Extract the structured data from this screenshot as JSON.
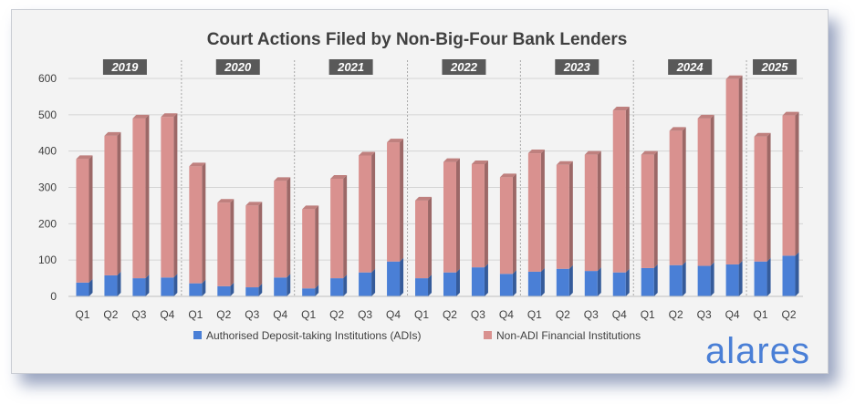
{
  "chart_data": {
    "type": "bar",
    "stacked": true,
    "title": "Court Actions Filed by Non-Big-Four Bank Lenders",
    "xlabel": "",
    "ylabel": "",
    "ylim": [
      0,
      600
    ],
    "yticks": [
      0,
      100,
      200,
      300,
      400,
      500,
      600
    ],
    "grid": true,
    "legend": "bottom",
    "year_groups": [
      {
        "label": "2019",
        "count": 4
      },
      {
        "label": "2020",
        "count": 4
      },
      {
        "label": "2021",
        "count": 4
      },
      {
        "label": "2022",
        "count": 4
      },
      {
        "label": "2023",
        "count": 4
      },
      {
        "label": "2024",
        "count": 4
      },
      {
        "label": "2025",
        "count": 2
      }
    ],
    "categories": [
      "Q1",
      "Q2",
      "Q3",
      "Q4",
      "Q1",
      "Q2",
      "Q3",
      "Q4",
      "Q1",
      "Q2",
      "Q3",
      "Q4",
      "Q1",
      "Q2",
      "Q3",
      "Q4",
      "Q1",
      "Q2",
      "Q3",
      "Q4",
      "Q1",
      "Q2",
      "Q3",
      "Q4",
      "Q1",
      "Q2"
    ],
    "series": [
      {
        "name": "Authorised Deposit-taking Institutions (ADIs)",
        "color": "#4a7fd6",
        "values": [
          38,
          58,
          50,
          52,
          36,
          28,
          25,
          52,
          22,
          50,
          66,
          96,
          50,
          66,
          80,
          62,
          68,
          76,
          70,
          66,
          78,
          86,
          84,
          88,
          96,
          112
        ]
      },
      {
        "name": "Non-ADI Financial Institutions",
        "color": "#d9918f",
        "values": [
          340,
          384,
          440,
          442,
          322,
          230,
          225,
          266,
          218,
          274,
          322,
          328,
          214,
          304,
          284,
          266,
          326,
          286,
          320,
          446,
          312,
          370,
          406,
          510,
          344,
          386
        ]
      }
    ]
  },
  "brand": {
    "name": "alares"
  }
}
